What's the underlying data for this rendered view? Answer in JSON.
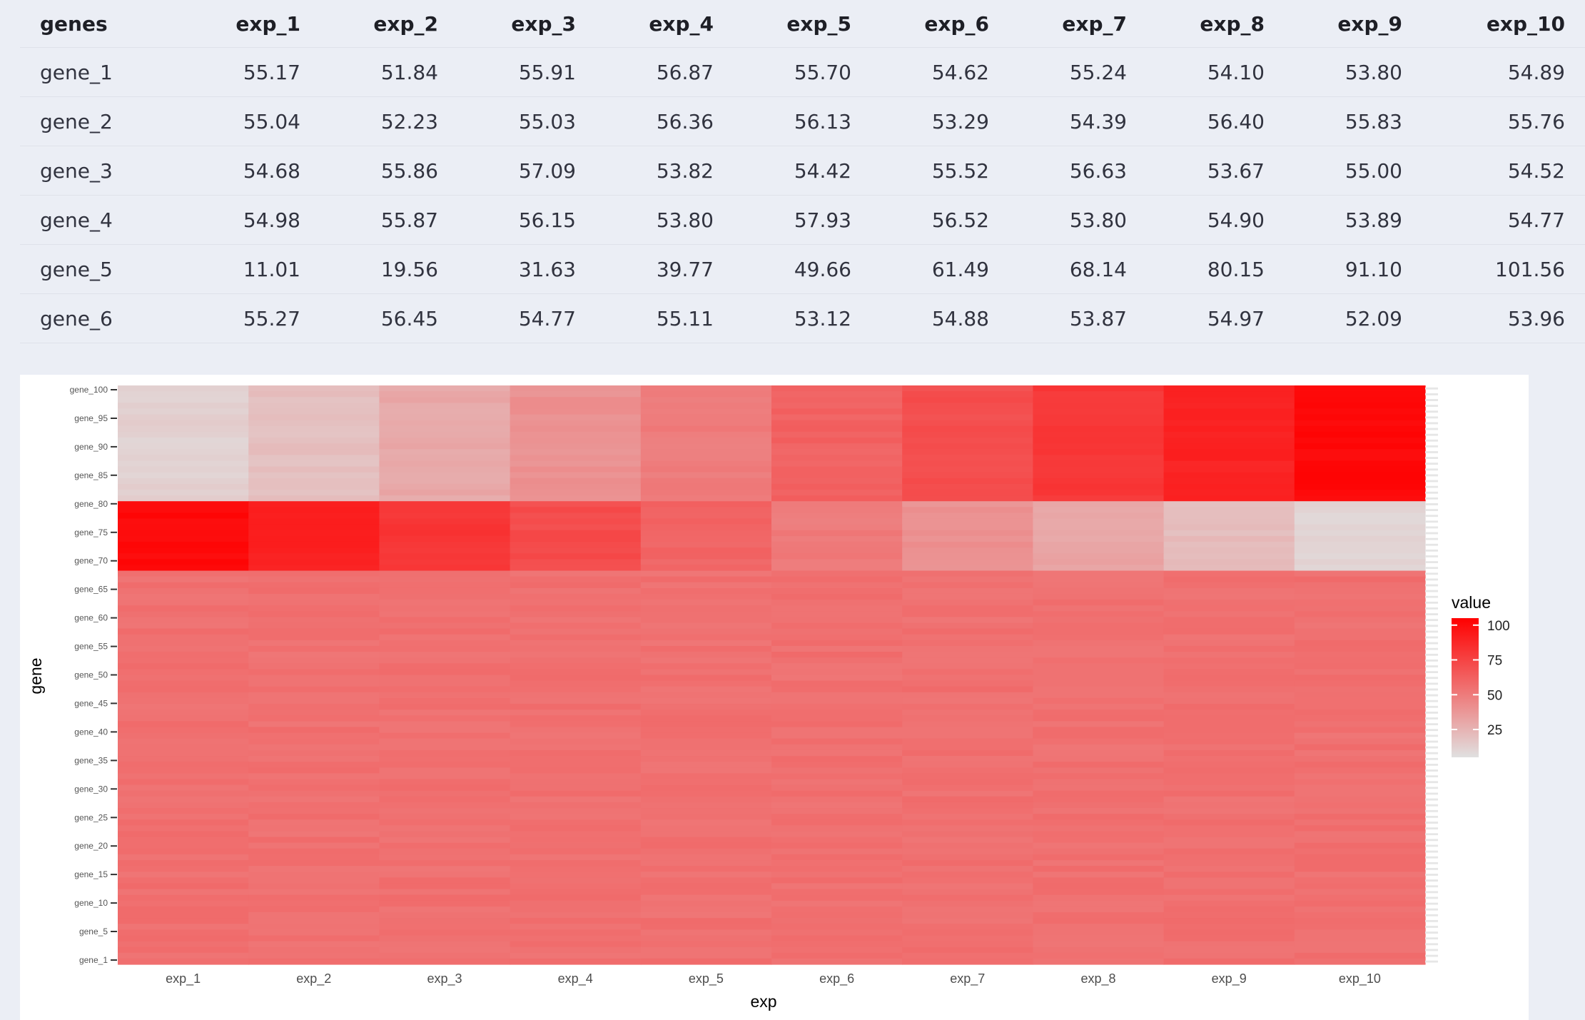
{
  "table": {
    "columns": [
      "genes",
      "exp_1",
      "exp_2",
      "exp_3",
      "exp_4",
      "exp_5",
      "exp_6",
      "exp_7",
      "exp_8",
      "exp_9",
      "exp_10"
    ],
    "rows": [
      [
        "gene_1",
        "55.17",
        "51.84",
        "55.91",
        "56.87",
        "55.70",
        "54.62",
        "55.24",
        "54.10",
        "53.80",
        "54.89"
      ],
      [
        "gene_2",
        "55.04",
        "52.23",
        "55.03",
        "56.36",
        "56.13",
        "53.29",
        "54.39",
        "56.40",
        "55.83",
        "55.76"
      ],
      [
        "gene_3",
        "54.68",
        "55.86",
        "57.09",
        "53.82",
        "54.42",
        "55.52",
        "56.63",
        "53.67",
        "55.00",
        "54.52"
      ],
      [
        "gene_4",
        "54.98",
        "55.87",
        "56.15",
        "53.80",
        "57.93",
        "56.52",
        "53.80",
        "54.90",
        "53.89",
        "54.77"
      ],
      [
        "gene_5",
        "11.01",
        "19.56",
        "31.63",
        "39.77",
        "49.66",
        "61.49",
        "68.14",
        "80.15",
        "91.10",
        "101.56"
      ],
      [
        "gene_6",
        "55.27",
        "56.45",
        "54.77",
        "55.11",
        "53.12",
        "54.88",
        "53.87",
        "54.97",
        "52.09",
        "53.96"
      ]
    ]
  },
  "chart_data": {
    "type": "heatmap",
    "xlabel": "exp",
    "ylabel": "gene",
    "x_categories": [
      "exp_1",
      "exp_2",
      "exp_3",
      "exp_4",
      "exp_5",
      "exp_6",
      "exp_7",
      "exp_8",
      "exp_9",
      "exp_10"
    ],
    "gene_groups": [
      {
        "count": 20,
        "mean_values": [
          12,
          20,
          30,
          40,
          50,
          61,
          70,
          80,
          90,
          101
        ]
      },
      {
        "count": 12,
        "mean_values": [
          101,
          91,
          81,
          71,
          60,
          50,
          40,
          31,
          21,
          11
        ]
      },
      {
        "count": 68,
        "mean_values": [
          55,
          55,
          55,
          55,
          55,
          55,
          55,
          55,
          55,
          55
        ]
      }
    ],
    "y_tick_labels_visible": [
      "gene_100",
      "gene_95",
      "gene_90",
      "gene_85",
      "gene_80",
      "gene_75",
      "gene_70",
      "gene_65",
      "gene_60",
      "gene_55",
      "gene_50",
      "gene_45",
      "gene_40",
      "gene_35",
      "gene_30",
      "gene_25",
      "gene_20",
      "gene_15",
      "gene_10",
      "gene_5",
      "gene_1"
    ],
    "legend": {
      "title": "value",
      "ticks": [
        "100",
        "75",
        "50",
        "25"
      ],
      "tick_values": [
        100,
        75,
        50,
        25
      ],
      "range": [
        5,
        105
      ],
      "low_color": "#e0e0e0",
      "high_color": "#ff0000",
      "placement": "right"
    }
  }
}
